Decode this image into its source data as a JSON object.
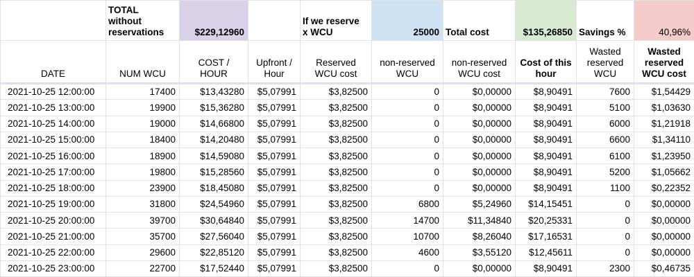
{
  "colors": {
    "purple": "#d9d2e9",
    "blue": "#cfe2f3",
    "green": "#d9ead3",
    "pink": "#f4cccc",
    "grid": "#e2e2e2",
    "divider": "#dce1ee"
  },
  "summary": {
    "total_label": "TOTAL\nwithout\nreservations",
    "total_value": "$229,12960",
    "reserve_label": "If we reserve\nx WCU",
    "reserve_value": "25000",
    "total_cost_label": "Total cost",
    "total_cost_value": "$135,26850",
    "savings_label": "Savings %",
    "savings_value": "40,96%"
  },
  "columns": [
    "DATE",
    "NUM WCU",
    "COST /\nHOUR",
    "Upfront /\nHour",
    "Reserved\nWCU cost",
    "non-reserved\nWCU",
    "non-reserved\nWCU cost",
    "Cost of this\nhour",
    "Wasted\nreserved\nWCU",
    "Wasted\nreserved\nWCU cost"
  ],
  "rows": [
    [
      "2021-10-25 12:00:00",
      "17400",
      "$13,43280",
      "$5,07991",
      "$3,82500",
      "0",
      "$0,00000",
      "$8,90491",
      "7600",
      "$1,54429"
    ],
    [
      "2021-10-25 13:00:00",
      "19900",
      "$15,36280",
      "$5,07991",
      "$3,82500",
      "0",
      "$0,00000",
      "$8,90491",
      "5100",
      "$1,03630"
    ],
    [
      "2021-10-25 14:00:00",
      "19000",
      "$14,66800",
      "$5,07991",
      "$3,82500",
      "0",
      "$0,00000",
      "$8,90491",
      "6000",
      "$1,21918"
    ],
    [
      "2021-10-25 15:00:00",
      "18400",
      "$14,20480",
      "$5,07991",
      "$3,82500",
      "0",
      "$0,00000",
      "$8,90491",
      "6600",
      "$1,34110"
    ],
    [
      "2021-10-25 16:00:00",
      "18900",
      "$14,59080",
      "$5,07991",
      "$3,82500",
      "0",
      "$0,00000",
      "$8,90491",
      "6100",
      "$1,23950"
    ],
    [
      "2021-10-25 17:00:00",
      "19800",
      "$15,28560",
      "$5,07991",
      "$3,82500",
      "0",
      "$0,00000",
      "$8,90491",
      "5200",
      "$1,05662"
    ],
    [
      "2021-10-25 18:00:00",
      "23900",
      "$18,45080",
      "$5,07991",
      "$3,82500",
      "0",
      "$0,00000",
      "$8,90491",
      "1100",
      "$0,22352"
    ],
    [
      "2021-10-25 19:00:00",
      "31800",
      "$24,54960",
      "$5,07991",
      "$3,82500",
      "6800",
      "$5,24960",
      "$14,15451",
      "0",
      "$0,00000"
    ],
    [
      "2021-10-25 20:00:00",
      "39700",
      "$30,64840",
      "$5,07991",
      "$3,82500",
      "14700",
      "$11,34840",
      "$20,25331",
      "0",
      "$0,00000"
    ],
    [
      "2021-10-25 21:00:00",
      "35700",
      "$27,56040",
      "$5,07991",
      "$3,82500",
      "10700",
      "$8,26040",
      "$17,16531",
      "0",
      "$0,00000"
    ],
    [
      "2021-10-25 22:00:00",
      "29600",
      "$22,85120",
      "$5,07991",
      "$3,82500",
      "4600",
      "$3,55120",
      "$12,45611",
      "0",
      "$0,00000"
    ],
    [
      "2021-10-25 23:00:00",
      "22700",
      "$17,52440",
      "$5,07991",
      "$3,82500",
      "0",
      "$0,00000",
      "$8,90491",
      "2300",
      "$0,46735"
    ]
  ]
}
